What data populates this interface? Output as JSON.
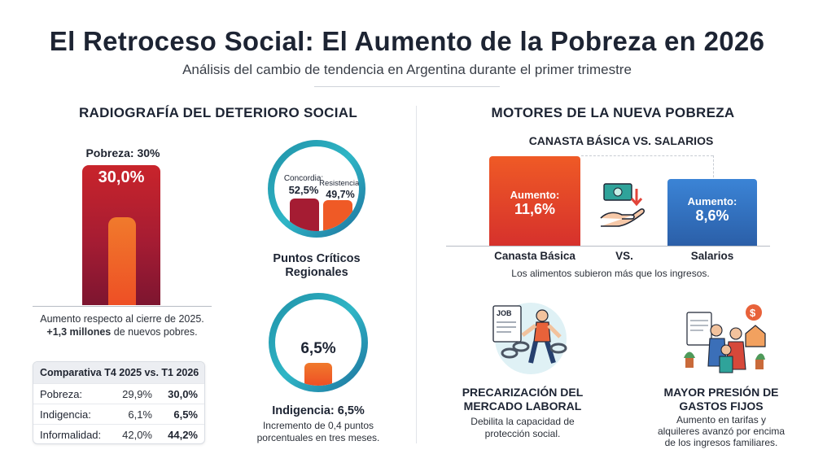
{
  "header": {
    "title": "El Retroceso Social: El Aumento de la Pobreza en 2026",
    "subtitle": "Análisis del cambio de tendencia en Argentina durante el primer trimestre"
  },
  "left": {
    "heading": "RADIOGRAFÍA DEL DETERIORO SOCIAL",
    "poverty": {
      "label": "Pobreza: 30%",
      "value_label": "30,0%",
      "note_line1": "Aumento respecto al cierre de 2025.",
      "note_bold": "+1,3 millones",
      "note_rest": " de nuevos pobres."
    },
    "comparison": {
      "header": "Comparativa T4 2025 vs. T1 2026",
      "rows": [
        {
          "label": "Pobreza:",
          "prev": "29,9%",
          "curr": "30,0%"
        },
        {
          "label": "Indigencia:",
          "prev": "6,1%",
          "curr": "6,5%"
        },
        {
          "label": "Informalidad:",
          "prev": "42,0%",
          "curr": "44,2%"
        }
      ]
    },
    "regional": {
      "bars": [
        {
          "name": "Concordia:",
          "value_label": "52,5%",
          "value": 52.5,
          "color": "#a51c33"
        },
        {
          "name": "Resistencia:",
          "value_label": "49,7%",
          "value": 49.7,
          "color": "#ef5a26"
        }
      ],
      "caption": "Puntos Críticos Regionales"
    },
    "indigence": {
      "value_label": "6,5%",
      "caption": "Indigencia: 6,5%",
      "note": "Incremento de 0,4 puntos porcentuales en tres meses."
    }
  },
  "right": {
    "heading": "MOTORES DE LA NUEVA POBREZA",
    "subheading": "CANASTA BÁSICA VS. SALARIOS",
    "bars": [
      {
        "label": "Canasta Básica",
        "tag": "Aumento:",
        "value_label": "11,6%",
        "value": 11.6,
        "color_top": "#ef5a26",
        "color_bottom": "#d6312c"
      },
      {
        "label": "Salarios",
        "tag": "Aumento:",
        "value_label": "8,6%",
        "value": 8.6,
        "color_top": "#3b84d6",
        "color_bottom": "#2b5fa8"
      }
    ],
    "vs_label": "VS.",
    "vs_icon": "money-hand-icon",
    "note": "Los alimentos subieron más que los ingresos.",
    "cards": [
      {
        "icon": "broken-chain-worker-icon",
        "job_tag": "JOB",
        "title_line1": "PRECARIZACIÓN DEL",
        "title_line2": "MERCADO LABORAL",
        "text": "Debilita la capacidad de protección social."
      },
      {
        "icon": "family-house-expenses-icon",
        "title_line1": "MAYOR PRESIÓN DE",
        "title_line2": "GASTOS FIJOS",
        "text": "Aumento en tarifas y alquileres avanzó por encima de los ingresos familiares."
      }
    ]
  },
  "chart_data": [
    {
      "type": "bar",
      "categories": [
        "Pobreza"
      ],
      "values": [
        30.0
      ],
      "title": "Pobreza: 30%",
      "ylim": [
        0,
        100
      ]
    },
    {
      "type": "bar",
      "categories": [
        "Concordia",
        "Resistencia"
      ],
      "values": [
        52.5,
        49.7
      ],
      "title": "Puntos Críticos Regionales"
    },
    {
      "type": "bar",
      "categories": [
        "Indigencia"
      ],
      "values": [
        6.5
      ],
      "title": "Indigencia: 6,5%"
    },
    {
      "type": "bar",
      "categories": [
        "Canasta Básica",
        "Salarios"
      ],
      "values": [
        11.6,
        8.6
      ],
      "title": "CANASTA BÁSICA VS. SALARIOS"
    },
    {
      "type": "table",
      "title": "Comparativa T4 2025 vs. T1 2026",
      "columns": [
        "",
        "T4 2025",
        "T1 2026"
      ],
      "rows": [
        [
          "Pobreza",
          29.9,
          30.0
        ],
        [
          "Indigencia",
          6.1,
          6.5
        ],
        [
          "Informalidad",
          42.0,
          44.2
        ]
      ]
    }
  ]
}
